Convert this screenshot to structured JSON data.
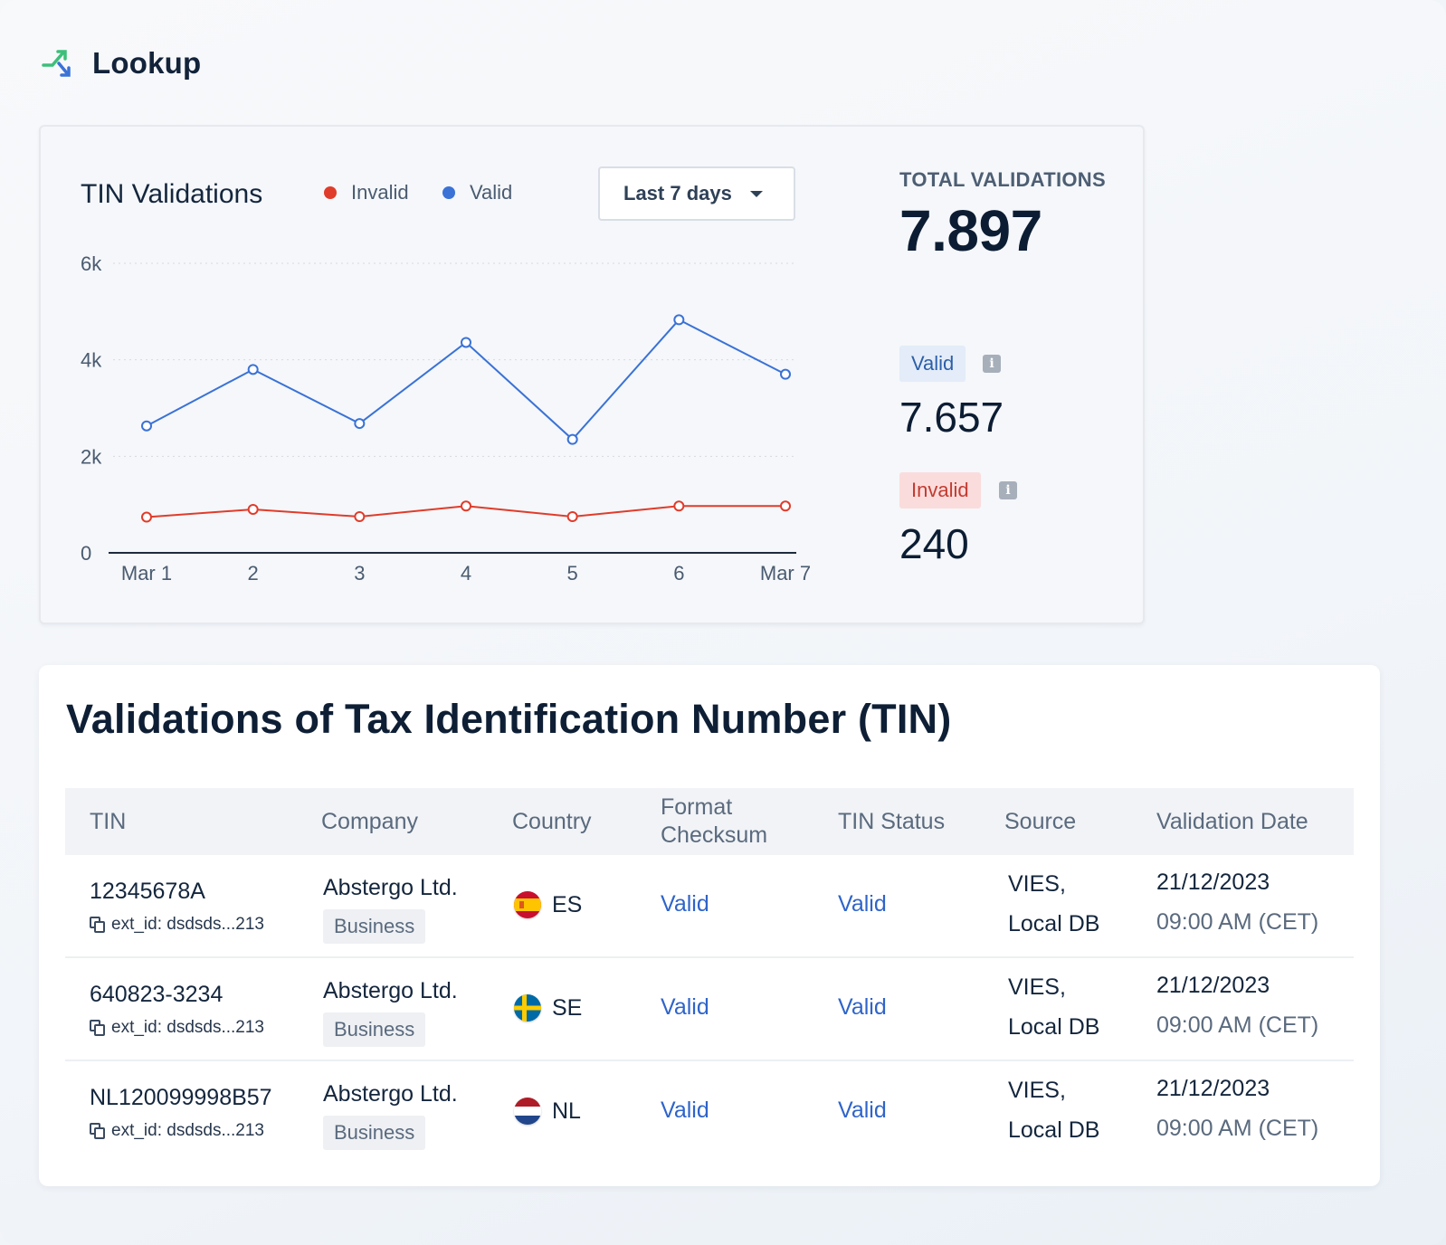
{
  "header": {
    "title": "Lookup",
    "logo_icon": "shuffle-arrows-icon"
  },
  "chart_panel": {
    "title": "TIN Validations",
    "legend": [
      {
        "label": "Invalid",
        "color": "#e03c2b"
      },
      {
        "label": "Valid",
        "color": "#3a72d6"
      }
    ],
    "period_select": {
      "value": "Last 7 days"
    }
  },
  "chart_data": {
    "type": "line",
    "x": [
      "Mar 1",
      "2",
      "3",
      "4",
      "5",
      "6",
      "Mar 7"
    ],
    "y_ticks": [
      "6k",
      "4k",
      "2k",
      "0"
    ],
    "ylim": [
      0,
      6000
    ],
    "grid": true,
    "legend_position": "top",
    "series": [
      {
        "name": "Valid",
        "color": "#3a72d6",
        "values": [
          2630,
          3800,
          2680,
          4360,
          2350,
          4830,
          3700
        ]
      },
      {
        "name": "Invalid",
        "color": "#e03c2b",
        "values": [
          740,
          900,
          750,
          970,
          750,
          970,
          970
        ]
      }
    ]
  },
  "stats": {
    "total_label": "TOTAL VALIDATIONS",
    "total_value": "7.897",
    "valid_label": "Valid",
    "valid_value": "7.657",
    "invalid_label": "Invalid",
    "invalid_value": "240"
  },
  "table": {
    "title": "Validations of Tax Identification Number (TIN)",
    "columns": [
      "TIN",
      "Company",
      "Country",
      "Format Checksum",
      "TIN Status",
      "Source",
      "Validation Date"
    ],
    "rows": [
      {
        "tin": "12345678A",
        "ext_id": "ext_id: dsdsds...213",
        "company": "Abstergo Ltd.",
        "company_type": "Business",
        "country": "ES",
        "flag": "spain-flag-icon",
        "format": "Valid",
        "status": "Valid",
        "source_line1": "VIES,",
        "source_line2": "Local DB",
        "date": "21/12/2023",
        "time": "09:00 AM (CET)"
      },
      {
        "tin": "640823-3234",
        "ext_id": "ext_id: dsdsds...213",
        "company": "Abstergo Ltd.",
        "company_type": "Business",
        "country": "SE",
        "flag": "sweden-flag-icon",
        "format": "Valid",
        "status": "Valid",
        "source_line1": "VIES,",
        "source_line2": "Local DB",
        "date": "21/12/2023",
        "time": "09:00 AM (CET)"
      },
      {
        "tin": "NL120099998B57",
        "ext_id": "ext_id: dsdsds...213",
        "company": "Abstergo Ltd.",
        "company_type": "Business",
        "country": "NL",
        "flag": "netherlands-flag-icon",
        "format": "Valid",
        "status": "Valid",
        "source_line1": "VIES,",
        "source_line2": "Local DB",
        "date": "21/12/2023",
        "time": "09:00 AM (CET)"
      }
    ]
  }
}
